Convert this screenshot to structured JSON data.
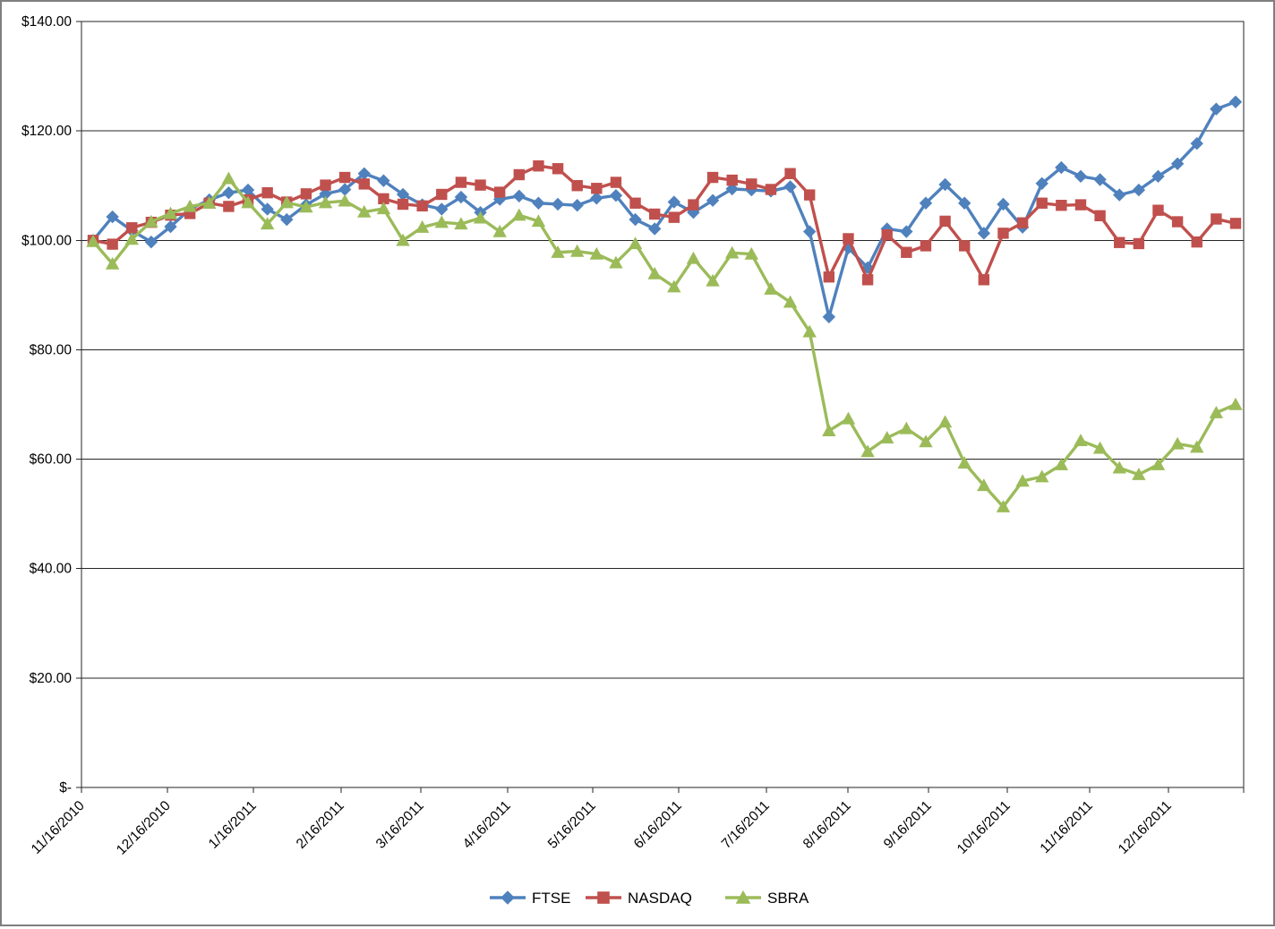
{
  "chart_data": {
    "type": "line",
    "title": "",
    "xlabel": "",
    "ylabel": "",
    "grid": true,
    "y_axis": {
      "min": 0,
      "max": 140,
      "step": 20,
      "tick_labels": [
        "$-",
        "$20.00",
        "$40.00",
        "$60.00",
        "$80.00",
        "$100.00",
        "$120.00",
        "$140.00"
      ],
      "currency_format": true
    },
    "x_axis": {
      "tick_labels": [
        "11/16/2010",
        "12/16/2010",
        "1/16/2011",
        "2/16/2011",
        "3/16/2011",
        "4/16/2011",
        "5/16/2011",
        "6/16/2011",
        "7/16/2011",
        "8/16/2011",
        "9/16/2011",
        "10/16/2011",
        "11/16/2011",
        "12/16/2011"
      ],
      "label_rotation_deg": -45,
      "points_frequency": "weekly",
      "range_start": "11/16/2010",
      "range_end": "12/16/2011"
    },
    "legend": {
      "position": "bottom",
      "entries": [
        {
          "label": "FTSE",
          "marker": "diamond",
          "color": "#4F81BD"
        },
        {
          "label": "NASDAQ",
          "marker": "square",
          "color": "#C0504D"
        },
        {
          "label": "SBRA",
          "marker": "triangle",
          "color": "#9BBB59"
        }
      ]
    },
    "series": [
      {
        "name": "FTSE",
        "color": "#4F81BD",
        "marker": "diamond",
        "values": [
          100.0,
          104.3,
          101.8,
          99.7,
          102.5,
          105.7,
          107.4,
          108.7,
          109.2,
          105.7,
          103.8,
          106.5,
          108.5,
          109.3,
          112.2,
          110.9,
          108.4,
          106.5,
          105.7,
          107.9,
          105.1,
          107.5,
          108.1,
          106.8,
          106.6,
          106.4,
          107.7,
          108.2,
          103.8,
          102.1,
          107.0,
          105.1,
          107.3,
          109.4,
          109.2,
          109.0,
          109.8,
          101.6,
          86.0,
          98.6,
          95.0,
          102.1,
          101.6,
          106.8,
          110.2,
          106.8,
          101.3,
          106.6,
          102.4,
          110.4,
          113.3,
          111.7,
          111.1,
          108.3,
          109.2,
          111.7,
          114.0,
          117.7,
          124.0,
          125.3
        ]
      },
      {
        "name": "NASDAQ",
        "color": "#C0504D",
        "marker": "square",
        "values": [
          100.0,
          99.3,
          102.3,
          103.3,
          104.6,
          104.9,
          106.8,
          106.2,
          107.4,
          108.7,
          107.0,
          108.5,
          110.1,
          111.5,
          110.3,
          107.6,
          106.6,
          106.3,
          108.4,
          110.6,
          110.1,
          108.8,
          112.0,
          113.6,
          113.1,
          110.0,
          109.5,
          110.6,
          106.8,
          104.8,
          104.2,
          106.5,
          111.5,
          111.0,
          110.3,
          109.3,
          112.2,
          108.3,
          93.3,
          100.3,
          92.8,
          101.0,
          97.8,
          99.0,
          103.5,
          99.0,
          92.8,
          101.3,
          103.2,
          106.8,
          106.4,
          106.5,
          104.5,
          99.6,
          99.4,
          105.5,
          103.4,
          99.7,
          103.9,
          103.1
        ]
      },
      {
        "name": "SBRA",
        "color": "#9BBB59",
        "marker": "triangle",
        "values": [
          99.8,
          95.7,
          100.2,
          103.4,
          104.9,
          106.2,
          106.8,
          111.3,
          106.9,
          103.0,
          106.9,
          106.1,
          106.9,
          107.2,
          105.2,
          105.8,
          100.0,
          102.4,
          103.3,
          103.0,
          104.1,
          101.6,
          104.6,
          103.5,
          97.8,
          98.0,
          97.5,
          95.9,
          99.4,
          93.9,
          91.5,
          96.7,
          92.6,
          97.7,
          97.5,
          91.1,
          88.7,
          83.3,
          65.2,
          67.4,
          61.4,
          63.9,
          65.6,
          63.2,
          66.8,
          59.3,
          55.2,
          51.3,
          56.0,
          56.8,
          59.0,
          63.4,
          62.0,
          58.4,
          57.2,
          59.0,
          62.8,
          62.2,
          68.5,
          70.0
        ]
      }
    ]
  }
}
